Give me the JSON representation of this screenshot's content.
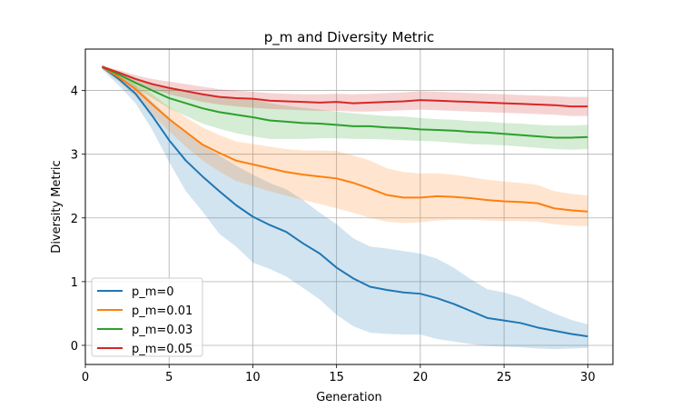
{
  "chart_data": {
    "type": "line",
    "title": "p_m and Diversity Metric",
    "xlabel": "Generation",
    "ylabel": "Diversity Metric",
    "xlim": [
      0,
      31.5
    ],
    "ylim": [
      -0.3,
      4.65
    ],
    "xticks": [
      0,
      5,
      10,
      15,
      20,
      25,
      30
    ],
    "yticks": [
      0,
      1,
      2,
      3,
      4
    ],
    "grid": true,
    "legend_position": "lower-left",
    "x": [
      1,
      2,
      3,
      4,
      5,
      6,
      7,
      8,
      9,
      10,
      11,
      12,
      13,
      14,
      15,
      16,
      17,
      18,
      19,
      20,
      21,
      22,
      23,
      24,
      25,
      26,
      27,
      28,
      29,
      30
    ],
    "series": [
      {
        "name": "p_m=0",
        "color": "#1f77b4",
        "values": [
          4.37,
          4.18,
          3.95,
          3.6,
          3.22,
          2.9,
          2.65,
          2.42,
          2.2,
          2.02,
          1.89,
          1.78,
          1.6,
          1.44,
          1.22,
          1.05,
          0.92,
          0.87,
          0.83,
          0.81,
          0.74,
          0.65,
          0.54,
          0.43,
          0.39,
          0.35,
          0.28,
          0.23,
          0.18,
          0.14
        ],
        "lower": [
          4.33,
          4.08,
          3.8,
          3.38,
          2.88,
          2.42,
          2.1,
          1.75,
          1.55,
          1.3,
          1.2,
          1.08,
          0.9,
          0.72,
          0.48,
          0.3,
          0.2,
          0.18,
          0.17,
          0.17,
          0.1,
          0.06,
          0.02,
          -0.01,
          -0.02,
          -0.03,
          -0.05,
          -0.06,
          -0.05,
          -0.04
        ],
        "upper": [
          4.41,
          4.26,
          4.08,
          3.82,
          3.58,
          3.35,
          3.15,
          2.98,
          2.82,
          2.68,
          2.55,
          2.45,
          2.28,
          2.08,
          1.9,
          1.68,
          1.55,
          1.52,
          1.48,
          1.44,
          1.36,
          1.22,
          1.04,
          0.88,
          0.83,
          0.75,
          0.62,
          0.5,
          0.4,
          0.33
        ]
      },
      {
        "name": "p_m=0.01",
        "color": "#ff7f0e",
        "values": [
          4.37,
          4.21,
          4.02,
          3.78,
          3.55,
          3.35,
          3.15,
          3.02,
          2.9,
          2.84,
          2.78,
          2.72,
          2.68,
          2.65,
          2.62,
          2.55,
          2.46,
          2.36,
          2.32,
          2.32,
          2.34,
          2.33,
          2.31,
          2.28,
          2.26,
          2.25,
          2.23,
          2.15,
          2.12,
          2.1
        ],
        "lower": [
          4.34,
          4.14,
          3.9,
          3.62,
          3.36,
          3.12,
          2.9,
          2.73,
          2.58,
          2.5,
          2.42,
          2.35,
          2.28,
          2.22,
          2.15,
          2.08,
          2.0,
          1.94,
          1.92,
          1.93,
          1.96,
          1.97,
          1.97,
          1.96,
          1.95,
          1.95,
          1.94,
          1.9,
          1.88,
          1.87
        ],
        "upper": [
          4.4,
          4.28,
          4.14,
          3.94,
          3.74,
          3.58,
          3.42,
          3.3,
          3.2,
          3.16,
          3.12,
          3.08,
          3.06,
          3.06,
          3.05,
          2.98,
          2.9,
          2.78,
          2.72,
          2.7,
          2.7,
          2.68,
          2.64,
          2.6,
          2.57,
          2.55,
          2.52,
          2.42,
          2.38,
          2.35
        ]
      },
      {
        "name": "p_m=0.03",
        "color": "#2ca02c",
        "values": [
          4.37,
          4.25,
          4.12,
          4.0,
          3.88,
          3.8,
          3.72,
          3.66,
          3.62,
          3.58,
          3.53,
          3.51,
          3.49,
          3.48,
          3.46,
          3.44,
          3.44,
          3.42,
          3.41,
          3.39,
          3.38,
          3.37,
          3.35,
          3.34,
          3.32,
          3.3,
          3.28,
          3.26,
          3.26,
          3.27
        ],
        "lower": [
          4.35,
          4.2,
          4.04,
          3.88,
          3.72,
          3.6,
          3.48,
          3.4,
          3.33,
          3.28,
          3.24,
          3.24,
          3.24,
          3.25,
          3.25,
          3.24,
          3.24,
          3.23,
          3.22,
          3.21,
          3.2,
          3.18,
          3.16,
          3.15,
          3.14,
          3.12,
          3.1,
          3.08,
          3.07,
          3.08
        ],
        "upper": [
          4.39,
          4.3,
          4.2,
          4.12,
          4.04,
          3.98,
          3.94,
          3.9,
          3.88,
          3.86,
          3.8,
          3.76,
          3.73,
          3.7,
          3.67,
          3.64,
          3.62,
          3.6,
          3.59,
          3.57,
          3.55,
          3.54,
          3.52,
          3.51,
          3.49,
          3.48,
          3.46,
          3.45,
          3.45,
          3.46
        ]
      },
      {
        "name": "p_m=0.05",
        "color": "#d62728",
        "values": [
          4.37,
          4.28,
          4.18,
          4.1,
          4.04,
          3.99,
          3.94,
          3.9,
          3.88,
          3.87,
          3.84,
          3.83,
          3.82,
          3.81,
          3.82,
          3.8,
          3.81,
          3.82,
          3.83,
          3.85,
          3.84,
          3.83,
          3.82,
          3.81,
          3.8,
          3.79,
          3.78,
          3.77,
          3.75,
          3.75
        ],
        "lower": [
          4.35,
          4.24,
          4.12,
          4.02,
          3.94,
          3.88,
          3.82,
          3.78,
          3.75,
          3.73,
          3.71,
          3.7,
          3.69,
          3.68,
          3.68,
          3.67,
          3.67,
          3.68,
          3.69,
          3.7,
          3.69,
          3.68,
          3.67,
          3.66,
          3.65,
          3.64,
          3.63,
          3.62,
          3.6,
          3.6
        ],
        "upper": [
          4.39,
          4.32,
          4.24,
          4.18,
          4.14,
          4.1,
          4.06,
          4.02,
          4.0,
          3.98,
          3.96,
          3.95,
          3.94,
          3.94,
          3.95,
          3.94,
          3.95,
          3.96,
          3.97,
          3.99,
          3.98,
          3.97,
          3.96,
          3.95,
          3.94,
          3.93,
          3.92,
          3.91,
          3.9,
          3.9
        ]
      }
    ]
  }
}
